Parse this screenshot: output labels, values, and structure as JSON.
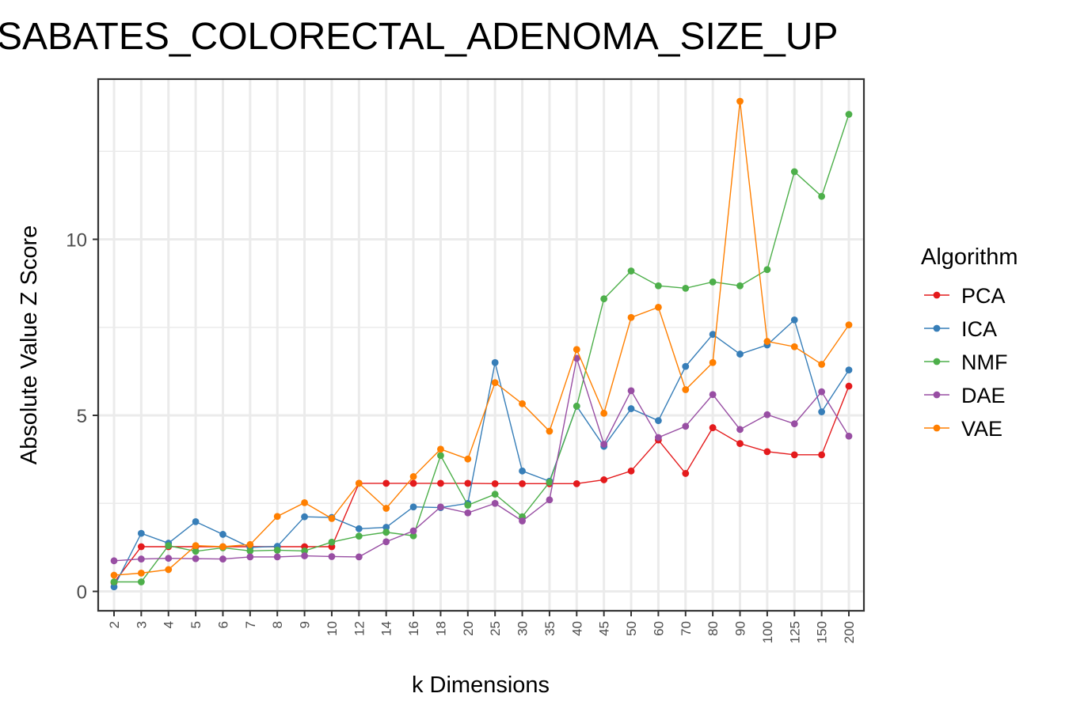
{
  "chart_data": {
    "type": "line",
    "title": "SABATES_COLORECTAL_ADENOMA_SIZE_UP",
    "xlabel": "k Dimensions",
    "ylabel": "Absolute Value Z Score",
    "categories": [
      "2",
      "3",
      "4",
      "5",
      "6",
      "7",
      "8",
      "9",
      "10",
      "12",
      "14",
      "16",
      "18",
      "20",
      "25",
      "30",
      "35",
      "40",
      "45",
      "50",
      "60",
      "70",
      "80",
      "90",
      "100",
      "125",
      "150",
      "200"
    ],
    "yticks": [
      0,
      5,
      10
    ],
    "ylim": [
      -0.55,
      14.55
    ],
    "grid": true,
    "legend": {
      "title": "Algorithm",
      "position": "right"
    },
    "series": [
      {
        "name": "PCA",
        "color": "#e41a1c",
        "values": [
          0.25,
          1.27,
          1.27,
          1.27,
          1.27,
          1.27,
          1.27,
          1.27,
          1.27,
          3.07,
          3.07,
          3.07,
          3.07,
          3.07,
          3.06,
          3.06,
          3.06,
          3.06,
          3.17,
          3.42,
          4.3,
          3.35,
          4.65,
          4.2,
          3.97,
          3.88,
          3.88,
          5.83
        ]
      },
      {
        "name": "ICA",
        "color": "#377eb8",
        "values": [
          0.13,
          1.65,
          1.37,
          1.98,
          1.62,
          1.25,
          1.28,
          2.12,
          2.1,
          1.78,
          1.82,
          2.4,
          2.38,
          2.5,
          6.5,
          3.42,
          3.13,
          5.26,
          4.12,
          5.19,
          4.85,
          6.39,
          7.3,
          6.74,
          7.0,
          7.71,
          5.1,
          6.29
        ]
      },
      {
        "name": "NMF",
        "color": "#4daf4a",
        "values": [
          0.27,
          0.27,
          1.3,
          1.14,
          1.24,
          1.15,
          1.17,
          1.15,
          1.4,
          1.57,
          1.68,
          1.58,
          3.86,
          2.45,
          2.76,
          2.12,
          3.1,
          5.26,
          8.31,
          9.1,
          8.68,
          8.61,
          8.79,
          8.68,
          9.14,
          11.92,
          11.22,
          13.55
        ]
      },
      {
        "name": "DAE",
        "color": "#984ea3",
        "values": [
          0.87,
          0.92,
          0.94,
          0.93,
          0.92,
          0.98,
          0.98,
          1.01,
          0.99,
          0.98,
          1.41,
          1.72,
          2.4,
          2.23,
          2.5,
          2.0,
          2.6,
          6.62,
          4.18,
          5.7,
          4.37,
          4.69,
          5.59,
          4.6,
          5.02,
          4.76,
          5.67,
          4.41
        ]
      },
      {
        "name": "VAE",
        "color": "#ff7f00",
        "values": [
          0.46,
          0.52,
          0.62,
          1.3,
          1.27,
          1.33,
          2.13,
          2.52,
          2.07,
          3.07,
          2.36,
          3.26,
          4.04,
          3.76,
          5.93,
          5.33,
          4.55,
          6.87,
          5.06,
          7.78,
          8.07,
          5.73,
          6.5,
          13.92,
          7.1,
          6.95,
          6.45,
          7.57
        ]
      }
    ]
  }
}
